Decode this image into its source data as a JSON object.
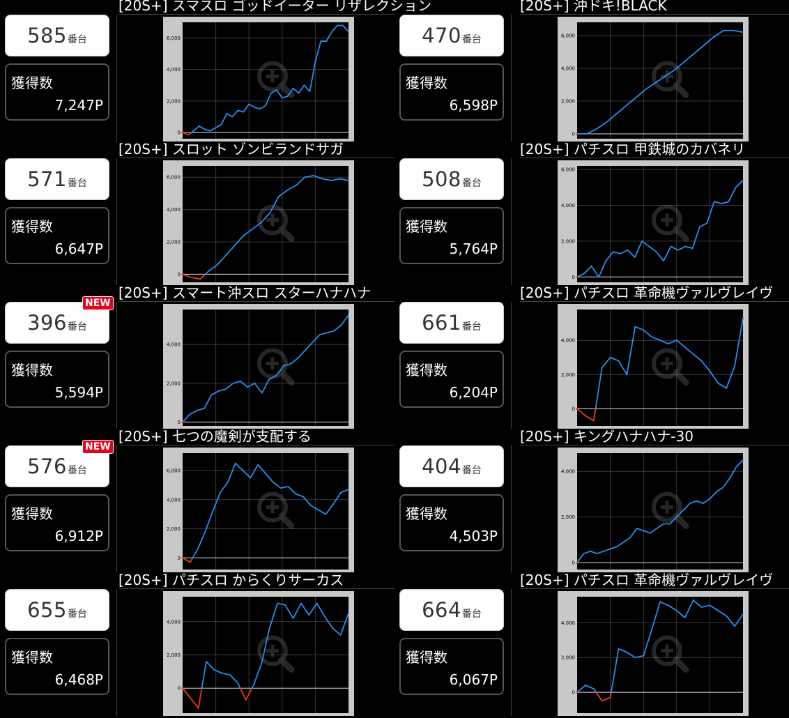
{
  "common": {
    "unit_label": "番台",
    "score_label": "獲得数",
    "new_label": "NEW",
    "zoom_icon": "zoom-in-icon"
  },
  "colors": {
    "positive_line": "#2a8cf0",
    "negative_line": "#ee3b1a",
    "chart_frame": "#c8c8c8",
    "chart_bg": "#000000",
    "new_badge": "#e8001c"
  },
  "cards": [
    {
      "title": "[20S+] スマスロ ゴッドイーター リザレクション",
      "machine_number": "585",
      "score": "7,247P",
      "is_new": false,
      "chart_data": {
        "type": "line",
        "ylim": [
          -400,
          7000
        ],
        "yticks": [
          0,
          2000,
          4000,
          6000
        ],
        "ytick_labels": [
          "0",
          "2,000",
          "4,000",
          "6,000"
        ],
        "values": [
          0,
          -150,
          100,
          400,
          200,
          100,
          300,
          500,
          1200,
          1000,
          1400,
          1300,
          1800,
          1600,
          1500,
          1700,
          2500,
          2700,
          2200,
          2300,
          2800,
          2500,
          3000,
          2600,
          4500,
          5800,
          5800,
          6400,
          6800,
          6800,
          6400
        ]
      }
    },
    {
      "title": "[20S+] 沖ドキ!BLACK",
      "machine_number": "470",
      "score": "6,598P",
      "is_new": false,
      "chart_data": {
        "type": "line",
        "ylim": [
          -300,
          6800
        ],
        "yticks": [
          0,
          2000,
          4000,
          6000
        ],
        "ytick_labels": [
          "0",
          "2,000",
          "4,000",
          "6,000"
        ],
        "values": [
          0,
          0,
          300,
          700,
          1200,
          1700,
          2200,
          2700,
          3100,
          3500,
          3900,
          4400,
          4900,
          5400,
          5900,
          6300,
          6300,
          6200
        ]
      }
    },
    {
      "title": "[20S+] スロット ゾンビランドサガ",
      "machine_number": "571",
      "score": "6,647P",
      "is_new": false,
      "chart_data": {
        "type": "line",
        "ylim": [
          -500,
          6700
        ],
        "yticks": [
          0,
          2000,
          4000,
          6000
        ],
        "ytick_labels": [
          "0",
          "2,000",
          "4,000",
          "6,000"
        ],
        "values": [
          0,
          -200,
          -300,
          200,
          600,
          1200,
          1800,
          2400,
          2800,
          3200,
          3800,
          4800,
          5200,
          5500,
          6000,
          6100,
          5900,
          5800,
          5900,
          5800
        ]
      }
    },
    {
      "title": "[20S+] パチスロ 甲鉄城のカバネリ",
      "machine_number": "508",
      "score": "5,764P",
      "is_new": false,
      "chart_data": {
        "type": "line",
        "ylim": [
          -300,
          6200
        ],
        "yticks": [
          0,
          2000,
          4000,
          6000
        ],
        "ytick_labels": [
          "0",
          "2,000",
          "4,000",
          "6,000"
        ],
        "values": [
          0,
          200,
          600,
          0,
          900,
          1400,
          1300,
          1500,
          1100,
          2000,
          1700,
          1400,
          900,
          1700,
          1500,
          1700,
          1600,
          2800,
          3000,
          4200,
          4100,
          4200,
          5000,
          5400
        ]
      }
    },
    {
      "title": "[20S+] スマート沖スロ スターハナハナ",
      "machine_number": "396",
      "score": "5,594P",
      "is_new": true,
      "chart_data": {
        "type": "line",
        "ylim": [
          -200,
          5800
        ],
        "yticks": [
          0,
          2000,
          4000
        ],
        "ytick_labels": [
          "0",
          "2,000",
          "4,000"
        ],
        "values": [
          0,
          400,
          600,
          700,
          1400,
          1600,
          1700,
          2000,
          2100,
          1800,
          2000,
          1500,
          2200,
          2400,
          2900,
          3000,
          3300,
          3700,
          4100,
          4500,
          4600,
          4700,
          5000,
          5500
        ]
      }
    },
    {
      "title": "[20S+] パチスロ 革命機ヴァルヴレイヴ",
      "machine_number": "661",
      "score": "6,204P",
      "is_new": false,
      "chart_data": {
        "type": "line",
        "ylim": [
          -1000,
          5800
        ],
        "yticks": [
          0,
          2000,
          4000
        ],
        "ytick_labels": [
          "0",
          "2,000",
          "4,000"
        ],
        "values": [
          0,
          -400,
          -700,
          2400,
          3000,
          2800,
          2000,
          4800,
          4600,
          4200,
          4000,
          3800,
          4000,
          3600,
          3200,
          2800,
          2200,
          1500,
          1200,
          2500,
          5300
        ]
      }
    },
    {
      "title": "[20S+] 七つの魔剣が支配する",
      "machine_number": "576",
      "score": "6,912P",
      "is_new": true,
      "chart_data": {
        "type": "line",
        "ylim": [
          -800,
          7200
        ],
        "yticks": [
          0,
          2000,
          4000,
          6000
        ],
        "ytick_labels": [
          "0",
          "2,000",
          "4,000",
          "6,000"
        ],
        "values": [
          0,
          -300,
          600,
          1800,
          3200,
          4500,
          5200,
          6500,
          6000,
          5500,
          6400,
          5800,
          5200,
          4800,
          4900,
          4400,
          4200,
          3600,
          3300,
          3000,
          3700,
          4500,
          4700
        ]
      }
    },
    {
      "title": "[20S+] キングハナハナ-30",
      "machine_number": "404",
      "score": "4,503P",
      "is_new": false,
      "chart_data": {
        "type": "line",
        "ylim": [
          -300,
          4800
        ],
        "yticks": [
          0,
          2000,
          4000
        ],
        "ytick_labels": [
          "0",
          "2,000",
          "4,000"
        ],
        "values": [
          0,
          400,
          500,
          400,
          500,
          600,
          700,
          900,
          1100,
          1500,
          1400,
          1300,
          1500,
          1700,
          1700,
          2000,
          2300,
          2600,
          2700,
          2600,
          2800,
          3100,
          3300,
          3700,
          4200,
          4500
        ]
      }
    },
    {
      "title": "[20S+] パチスロ からくりサーカス",
      "machine_number": "655",
      "score": "6,468P",
      "is_new": false,
      "chart_data": {
        "type": "line",
        "ylim": [
          -1500,
          5500
        ],
        "yticks": [
          0,
          2000,
          4000
        ],
        "ytick_labels": [
          "0",
          "2,000",
          "4,000"
        ],
        "values": [
          0,
          -600,
          -1200,
          1600,
          1100,
          900,
          800,
          300,
          -700,
          200,
          1500,
          3600,
          5100,
          5000,
          4200,
          5100,
          4400,
          5100,
          4300,
          3600,
          3200,
          4500
        ]
      }
    },
    {
      "title": "[20S+] パチスロ 革命機ヴァルヴレイヴ",
      "machine_number": "664",
      "score": "6,067P",
      "is_new": false,
      "chart_data": {
        "type": "line",
        "ylim": [
          -1200,
          5500
        ],
        "yticks": [
          0,
          2000,
          4000
        ],
        "ytick_labels": [
          "0",
          "2,000",
          "4,000"
        ],
        "values": [
          0,
          400,
          200,
          -500,
          -300,
          2500,
          2300,
          2000,
          2100,
          3600,
          5200,
          5000,
          4700,
          4300,
          5300,
          4900,
          5000,
          4700,
          4400,
          3800,
          4500
        ]
      }
    }
  ]
}
